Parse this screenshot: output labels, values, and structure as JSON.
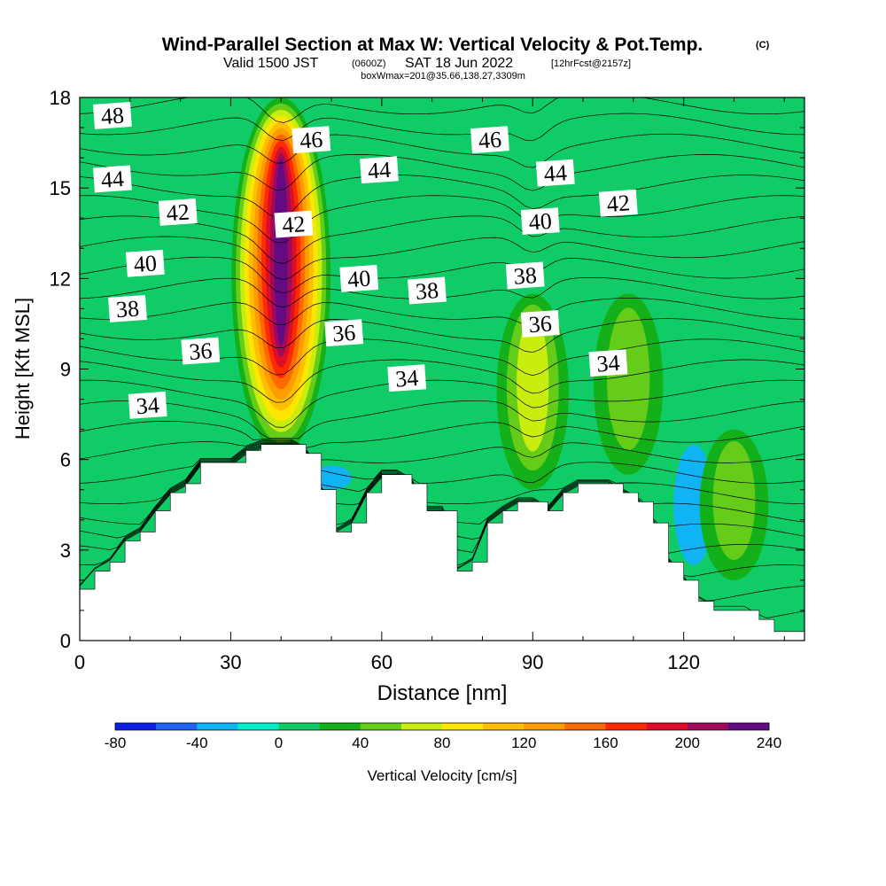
{
  "header": {
    "title": "Wind-Parallel Section at Max W: Vertical Velocity & Pot.Temp.",
    "title_mark": "(C)",
    "valid_prefix": "Valid 1500 JST",
    "valid_utc": "(0600Z)",
    "valid_date": "SAT 18 Jun 2022",
    "forecast": "[12hrFcst@2157z]",
    "box_info": "boxWmax=201@35.66,138.27,3309m"
  },
  "chart_data": {
    "type": "heatmap",
    "title": "Wind-Parallel Section at Max W: Vertical Velocity & Pot.Temp.",
    "xlabel": "Distance [nm]",
    "ylabel": "Height [Kft MSL]",
    "xlim": [
      0,
      144
    ],
    "ylim": [
      0,
      18
    ],
    "x_ticks": [
      0,
      30,
      60,
      90,
      120
    ],
    "y_ticks": [
      0,
      3,
      6,
      9,
      12,
      15,
      18
    ],
    "colorbar": {
      "label": "Vertical Velocity [cm/s]",
      "min": -80,
      "max": 240,
      "step": 20,
      "tick_labels": [
        "-80",
        "-40",
        "0",
        "40",
        "80",
        "120",
        "160",
        "200",
        "240"
      ],
      "colors": [
        "#0a1ee6",
        "#1e64f0",
        "#10b4f4",
        "#00eecc",
        "#10cc66",
        "#14b01a",
        "#66cc1a",
        "#c8ee10",
        "#ffe600",
        "#ffbe00",
        "#ff9c00",
        "#ff6a00",
        "#ff2a00",
        "#dc0e2a",
        "#a00a5a",
        "#640a82"
      ]
    },
    "background_value": 0,
    "updraft_cores": [
      {
        "x": 40,
        "bottom": 6.2,
        "top": 18,
        "peak_value": 230
      },
      {
        "x": 90,
        "bottom": 5.0,
        "top": 11.5,
        "peak_value": 70
      },
      {
        "x": 109,
        "bottom": 5.5,
        "top": 11.5,
        "peak_value": 55
      },
      {
        "x": 130,
        "bottom": 2.0,
        "top": 7.0,
        "peak_value": 50
      }
    ],
    "downdraft_areas": [
      {
        "x": 122,
        "bottom": 2.5,
        "top": 6.5,
        "peak_value": -25
      },
      {
        "x": 50,
        "bottom": 5.0,
        "top": 5.8,
        "peak_value": -25
      }
    ],
    "terrain": {
      "description": "terrain height profile (Kft) along distance (nm)",
      "x": [
        0,
        3,
        6,
        9,
        12,
        15,
        18,
        21,
        24,
        27,
        30,
        33,
        36,
        39,
        42,
        45,
        48,
        51,
        54,
        57,
        60,
        63,
        66,
        69,
        72,
        75,
        78,
        81,
        84,
        87,
        90,
        93,
        96,
        99,
        102,
        105,
        108,
        111,
        114,
        117,
        120,
        123,
        126,
        129,
        132,
        135,
        138,
        141,
        144
      ],
      "height": [
        1.7,
        2.3,
        2.6,
        3.3,
        3.6,
        4.3,
        4.9,
        5.2,
        5.9,
        5.9,
        5.9,
        6.3,
        6.5,
        6.5,
        6.5,
        6.2,
        5.0,
        3.6,
        3.9,
        4.9,
        5.5,
        5.5,
        5.2,
        4.3,
        4.3,
        2.3,
        2.6,
        3.9,
        4.3,
        4.6,
        4.6,
        4.3,
        4.9,
        5.2,
        5.2,
        5.2,
        4.9,
        4.6,
        3.9,
        2.6,
        2.0,
        1.3,
        1.0,
        1.0,
        1.0,
        0.7,
        0.3,
        0.3,
        0.3
      ]
    },
    "theta_contours": {
      "label": "Pot.Temp. (C)",
      "levels": [
        34,
        36,
        38,
        40,
        42,
        44,
        46,
        48
      ],
      "interval": 1,
      "labels": [
        {
          "text": "48",
          "x": 6.5,
          "y": 17.4
        },
        {
          "text": "44",
          "x": 6.5,
          "y": 15.3
        },
        {
          "text": "42",
          "x": 19.5,
          "y": 14.2
        },
        {
          "text": "40",
          "x": 13,
          "y": 12.5
        },
        {
          "text": "38",
          "x": 9.5,
          "y": 11.0
        },
        {
          "text": "36",
          "x": 24,
          "y": 9.6
        },
        {
          "text": "34",
          "x": 13.5,
          "y": 7.8
        },
        {
          "text": "46",
          "x": 46,
          "y": 16.6
        },
        {
          "text": "42",
          "x": 42.5,
          "y": 13.8
        },
        {
          "text": "44",
          "x": 59.5,
          "y": 15.6
        },
        {
          "text": "40",
          "x": 55.5,
          "y": 12.0
        },
        {
          "text": "36",
          "x": 52.5,
          "y": 10.2
        },
        {
          "text": "38",
          "x": 69,
          "y": 11.6
        },
        {
          "text": "34",
          "x": 65,
          "y": 8.7
        },
        {
          "text": "46",
          "x": 81.5,
          "y": 16.6
        },
        {
          "text": "44",
          "x": 94.5,
          "y": 15.5
        },
        {
          "text": "40",
          "x": 91.5,
          "y": 13.9
        },
        {
          "text": "38",
          "x": 88.5,
          "y": 12.1
        },
        {
          "text": "36",
          "x": 91.5,
          "y": 10.5
        },
        {
          "text": "42",
          "x": 107,
          "y": 14.5
        },
        {
          "text": "34",
          "x": 105,
          "y": 9.2
        }
      ]
    }
  }
}
